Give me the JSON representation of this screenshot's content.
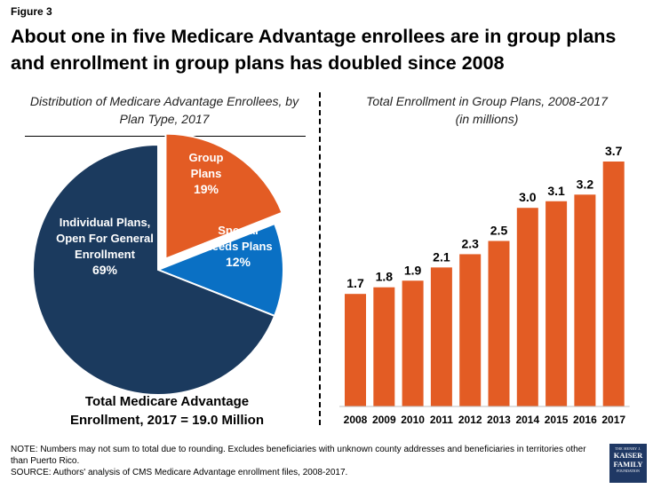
{
  "figure_label": "Figure 3",
  "headline": "About one in five Medicare Advantage enrollees are in group plans and enrollment in group plans has doubled since 2008",
  "left_subtitle": "Distribution of Medicare Advantage Enrollees, by Plan Type, 2017",
  "right_subtitle_line1": "Total Enrollment in Group Plans, 2008-2017",
  "right_subtitle_line2": "(in millions)",
  "total_line1": "Total Medicare Advantage",
  "total_line2": "Enrollment, 2017 = 19.0 Million",
  "note": "NOTE:  Numbers may not sum to total due to rounding. Excludes beneficiaries with unknown county addresses and beneficiaries in territories other than Puerto Rico.",
  "source": "SOURCE:  Authors' analysis of CMS Medicare Advantage enrollment files, 2008-2017.",
  "logo": {
    "line1": "THE HENRY J.",
    "line2": "KAISER",
    "line3": "FAMILY",
    "line4": "FOUNDATION"
  },
  "chart_data": [
    {
      "type": "pie",
      "title": "Distribution of Medicare Advantage Enrollees, by Plan Type, 2017",
      "slices": [
        {
          "label_lines": [
            "Group",
            "Plans"
          ],
          "value_label": "19%",
          "value": 19,
          "color": "#e35c24",
          "exploded": true
        },
        {
          "label_lines": [
            "Special",
            "Needs Plans"
          ],
          "value_label": "12%",
          "value": 12,
          "color": "#0a70c4",
          "exploded": false
        },
        {
          "label_lines": [
            "Individual Plans,",
            "Open For General",
            "Enrollment"
          ],
          "value_label": "69%",
          "value": 69,
          "color": "#1b3a5e",
          "exploded": false
        }
      ]
    },
    {
      "type": "bar",
      "title": "Total Enrollment in Group Plans, 2008-2017",
      "ylabel": "(in millions)",
      "categories": [
        "2008",
        "2009",
        "2010",
        "2011",
        "2012",
        "2013",
        "2014",
        "2015",
        "2016",
        "2017"
      ],
      "values": [
        1.7,
        1.8,
        1.9,
        2.1,
        2.3,
        2.5,
        3.0,
        3.1,
        3.2,
        3.7
      ],
      "value_labels": [
        "1.7",
        "1.8",
        "1.9",
        "2.1",
        "2.3",
        "2.5",
        "3.0",
        "3.1",
        "3.2",
        "3.7"
      ],
      "ylim": [
        0,
        3.7
      ],
      "grid": false,
      "color": "#e35c24"
    }
  ]
}
